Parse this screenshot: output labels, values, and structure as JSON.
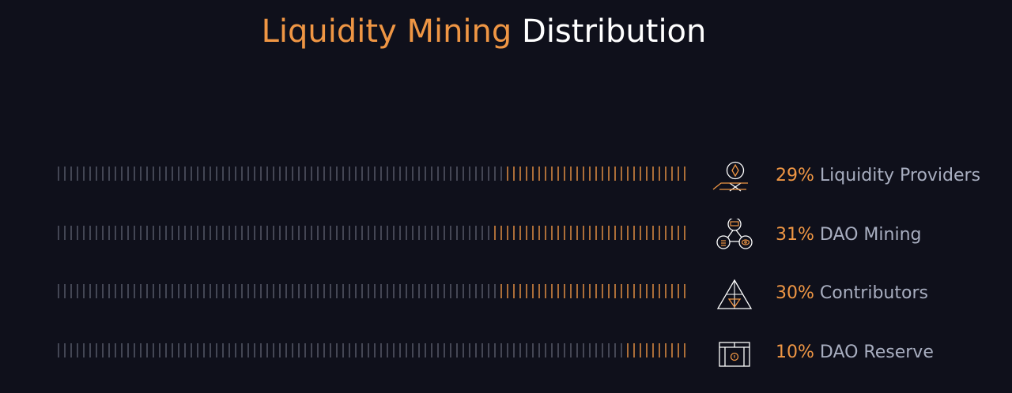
{
  "title": {
    "accent": "Liquidity Mining",
    "rest": "Distribution"
  },
  "colors": {
    "background": "#0f101b",
    "accent": "#ef9644",
    "inactive_tick": "#5a5e6d",
    "label": "#a8aec0",
    "title_plain": "#ffffff"
  },
  "chart_data": {
    "type": "bar",
    "categories": [
      "Liquidity Providers",
      "DAO Mining",
      "Contributors",
      "DAO Reserve"
    ],
    "values": [
      29,
      31,
      30,
      10
    ],
    "unit": "%",
    "orientation": "horizontal",
    "direction": "right-to-left"
  },
  "rows": [
    {
      "pct": "29%",
      "name": "Liquidity Providers",
      "value": 29,
      "icon": "person-diamond-icon"
    },
    {
      "pct": "31%",
      "name": "DAO Mining",
      "value": 31,
      "icon": "network-nodes-icon"
    },
    {
      "pct": "30%",
      "name": "Contributors",
      "value": 30,
      "icon": "nested-triangle-icon"
    },
    {
      "pct": "10%",
      "name": "DAO Reserve",
      "value": 10,
      "icon": "vault-icon"
    }
  ]
}
